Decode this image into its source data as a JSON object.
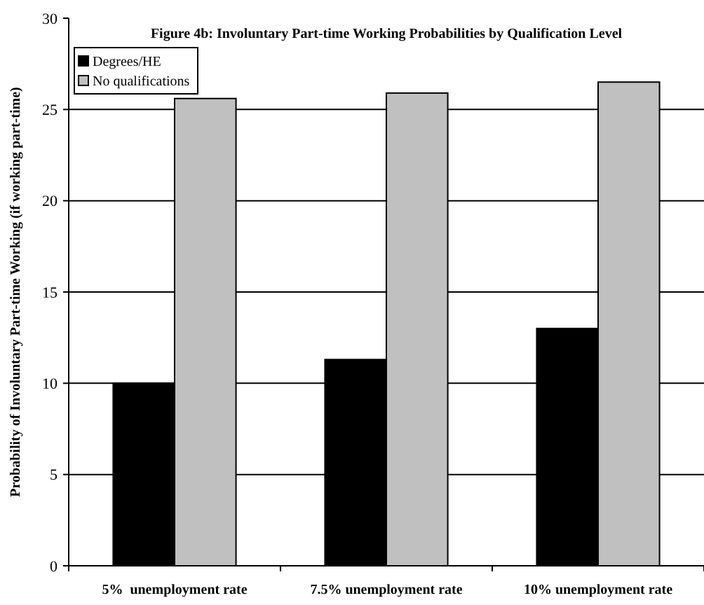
{
  "chart_data": {
    "type": "bar",
    "title": "Figure 4b: Involuntary Part-time Working Probabilities by Qualification Level",
    "ylabel": "Probability of Involuntary Part-time Working (if working part-time)",
    "categories": [
      "5%  unemployment rate",
      "7.5% unemployment rate",
      "10% unemployment rate"
    ],
    "series": [
      {
        "name": "Degrees/HE",
        "color": "#000000",
        "values": [
          10,
          11.3,
          13
        ]
      },
      {
        "name": "No qualifications",
        "color": "#c0c0c0",
        "values": [
          25.6,
          25.9,
          26.5
        ]
      }
    ],
    "ylim": [
      0,
      30
    ],
    "yticks": [
      0,
      5,
      10,
      15,
      20,
      25,
      30
    ],
    "grid": "y",
    "legend": "top left"
  }
}
